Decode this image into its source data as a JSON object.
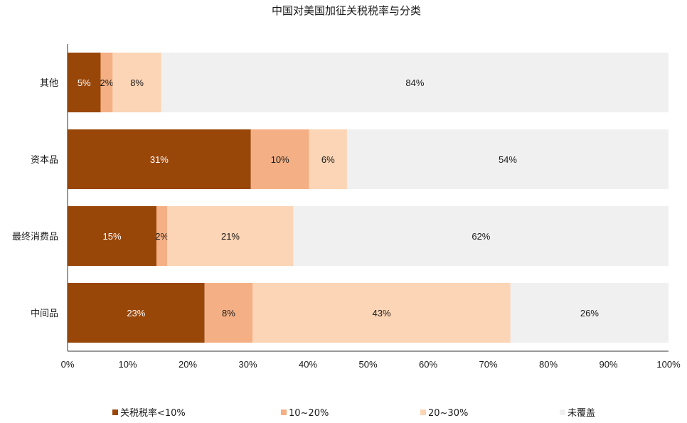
{
  "chart_data": {
    "type": "bar",
    "orientation": "horizontal",
    "stacked": true,
    "title": "中国对美国加征关税税率与分类",
    "categories": [
      "其他",
      "资本品",
      "最终消费品",
      "中间品"
    ],
    "series": [
      {
        "name": "关税税率<10%",
        "color": "#994709",
        "values": [
          5.5,
          30.5,
          14.8,
          22.8
        ],
        "labels": [
          "5%",
          "31%",
          "15%",
          "23%"
        ],
        "label_color": "#ffffff"
      },
      {
        "name": "10~20%",
        "color": "#f4b084",
        "values": [
          2.0,
          9.7,
          1.8,
          8.0
        ],
        "labels": [
          "2%",
          "10%",
          "2%",
          "8%"
        ],
        "label_color": "#1a1a1a"
      },
      {
        "name": "20~30%",
        "color": "#fbd5b5",
        "values": [
          8.1,
          6.3,
          21.0,
          42.9
        ],
        "labels": [
          "8%",
          "6%",
          "21%",
          "43%"
        ],
        "label_color": "#1a1a1a"
      },
      {
        "name": "未覆盖",
        "color": "#f0f0f0",
        "values": [
          84.4,
          53.5,
          62.4,
          26.3
        ],
        "labels": [
          "84%",
          "54%",
          "62%",
          "26%"
        ],
        "label_color": "#1a1a1a"
      }
    ],
    "xlim": [
      0,
      100
    ],
    "xticks": [
      "0%",
      "10%",
      "20%",
      "30%",
      "40%",
      "50%",
      "60%",
      "70%",
      "80%",
      "90%",
      "100%"
    ],
    "grid": false,
    "legend_position": "bottom"
  }
}
